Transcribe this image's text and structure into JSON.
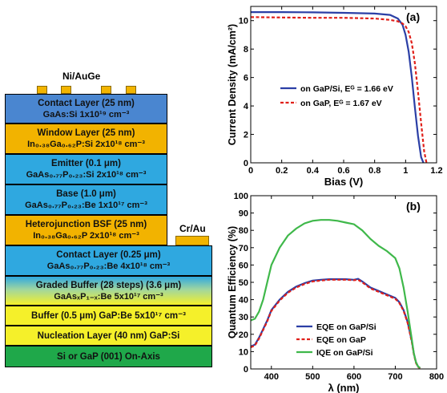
{
  "device": {
    "top_metal_label": "Ni/AuGe",
    "side_metal_label": "Cr/Au",
    "layers": [
      {
        "line1": "Contact Layer (25 nm)",
        "line2": "GaAs:Si 1x10¹⁹ cm⁻³",
        "color": "#4a86d0"
      },
      {
        "line1": "Window Layer (25 nm)",
        "line2": "In₀.₃₈Ga₀.₆₂P:Si 2x10¹⁸ cm⁻³",
        "color": "#f2b300"
      },
      {
        "line1": "Emitter (0.1 μm)",
        "line2": "GaAs₀.₇₇P₀.₂₃:Si 2x10¹⁸ cm⁻³",
        "color": "#2fa8e0"
      },
      {
        "line1": "Base (1.0 μm)",
        "line2": "GaAs₀.₇₇P₀.₂₃:Be 1x10¹⁷ cm⁻³",
        "color": "#2fa8e0"
      },
      {
        "line1": "Heterojunction BSF (25 nm)",
        "line2": "In₀.₃₈Ga₀.₆₂P 2x10¹⁸ cm⁻³",
        "color": "#f2b300"
      },
      {
        "line1": "Contact Layer (0.25 μm)",
        "line2": "GaAs₀.₇₇P₀.₂₃:Be 4x10¹⁸ cm⁻³",
        "color": "#2fa8e0"
      },
      {
        "line1": "Graded Buffer (28 steps) (3.6 μm)",
        "line2": "GaAsₓP₁₋ₓ:Be 5x10¹⁷ cm⁻³",
        "color": "gradient"
      },
      {
        "line1": "Buffer (0.5 μm) GaP:Be 5x10¹⁷ cm⁻³",
        "line2": "",
        "color": "#f5f02a"
      },
      {
        "line1": "Nucleation Layer (40 nm) GaP:Si",
        "line2": "",
        "color": "#f5f02a"
      },
      {
        "line1": "Si or GaP (001) On-Axis",
        "line2": "",
        "color": "#1fa84a"
      }
    ]
  },
  "chart_data": [
    {
      "type": "line",
      "panel_label": "(a)",
      "xlabel": "Bias (V)",
      "ylabel": "Current Density (mA/cm²)",
      "xlim": [
        0,
        1.2
      ],
      "ylim": [
        0,
        11
      ],
      "xticks": [
        0,
        0.2,
        0.4,
        0.6,
        0.8,
        1,
        1.2
      ],
      "xtick_labels": [
        "0",
        "0.2",
        "0.4",
        "0.6",
        "0.8",
        "1",
        "1.2"
      ],
      "yticks": [
        0,
        2,
        4,
        6,
        8,
        10
      ],
      "ytick_labels": [
        "0",
        "2",
        "4",
        "6",
        "8",
        "10"
      ],
      "grid": false,
      "legend_position": "center",
      "series": [
        {
          "name": "on GaP/Si, Eᴳ = 1.66 eV",
          "color": "#2b3fa6",
          "style": "solid",
          "x": [
            0,
            0.2,
            0.4,
            0.6,
            0.8,
            0.9,
            0.95,
            0.98,
            1.0,
            1.02,
            1.04,
            1.06,
            1.08,
            1.1,
            1.115
          ],
          "y": [
            10.6,
            10.6,
            10.58,
            10.55,
            10.5,
            10.4,
            10.15,
            9.7,
            9.0,
            7.8,
            6.0,
            3.9,
            1.9,
            0.4,
            0
          ]
        },
        {
          "name": "on GaP, Eᴳ = 1.67 eV",
          "color": "#e0201a",
          "style": "dashed",
          "x": [
            0,
            0.2,
            0.4,
            0.6,
            0.8,
            0.9,
            0.95,
            0.98,
            1.0,
            1.02,
            1.04,
            1.06,
            1.08,
            1.1,
            1.12,
            1.135
          ],
          "y": [
            10.25,
            10.22,
            10.2,
            10.2,
            10.15,
            10.05,
            9.95,
            9.8,
            9.6,
            9.2,
            8.4,
            7.0,
            5.0,
            2.8,
            0.8,
            0
          ]
        }
      ]
    },
    {
      "type": "line",
      "panel_label": "(b)",
      "xlabel": "λ (nm)",
      "ylabel": "Quantum Efficiency (%)",
      "xlim": [
        350,
        800
      ],
      "ylim": [
        0,
        100
      ],
      "xticks": [
        400,
        500,
        600,
        700,
        800
      ],
      "xtick_labels": [
        "400",
        "500",
        "600",
        "700",
        "800"
      ],
      "yticks": [
        0,
        10,
        20,
        30,
        40,
        50,
        60,
        70,
        80,
        90,
        100
      ],
      "ytick_labels": [
        "0",
        "10",
        "20",
        "30",
        "40",
        "50",
        "60",
        "70",
        "80",
        "90",
        "100"
      ],
      "grid": false,
      "legend_position": "bottom-left",
      "series": [
        {
          "name": "EQE on GaP/Si",
          "color": "#2b3fa6",
          "style": "solid",
          "x": [
            350,
            360,
            370,
            380,
            390,
            400,
            420,
            440,
            460,
            480,
            500,
            520,
            540,
            560,
            580,
            600,
            610,
            620,
            640,
            660,
            680,
            700,
            710,
            720,
            730,
            740,
            745,
            750,
            755,
            760
          ],
          "y": [
            13,
            14,
            18,
            23,
            28,
            34,
            40,
            44.5,
            47.5,
            49.5,
            51,
            51.5,
            51.8,
            51.8,
            51.8,
            51.5,
            52,
            50.5,
            47,
            45,
            43,
            41,
            38.5,
            34,
            27,
            16,
            9,
            4,
            1.5,
            0.5
          ]
        },
        {
          "name": "EQE on GaP",
          "color": "#e0201a",
          "style": "dashed",
          "x": [
            350,
            360,
            370,
            380,
            390,
            400,
            420,
            440,
            460,
            480,
            500,
            520,
            540,
            560,
            580,
            600,
            610,
            620,
            640,
            660,
            680,
            700,
            710,
            720,
            730,
            740,
            745,
            750,
            755,
            760
          ],
          "y": [
            12.5,
            13.5,
            17.5,
            22.5,
            27.5,
            33.5,
            39.5,
            44,
            47,
            49,
            50.5,
            51,
            51.5,
            51.5,
            51.5,
            51.2,
            51.5,
            50,
            46.5,
            44.5,
            42.5,
            40.5,
            38,
            33.5,
            26.5,
            15.5,
            8.5,
            3.5,
            1.2,
            0.3
          ]
        },
        {
          "name": "IQE on GaP/Si",
          "color": "#3fb84a",
          "style": "solid",
          "x": [
            350,
            360,
            370,
            380,
            390,
            400,
            420,
            440,
            460,
            480,
            500,
            520,
            540,
            560,
            580,
            600,
            620,
            640,
            660,
            680,
            700,
            710,
            720,
            730,
            740,
            745,
            750,
            755,
            760
          ],
          "y": [
            28,
            29,
            33,
            40,
            50,
            60,
            70,
            77,
            81,
            84,
            85.5,
            86,
            86,
            85.5,
            84.5,
            83.5,
            80,
            75,
            71,
            68,
            64,
            58,
            47,
            33,
            17,
            9,
            4,
            1.5,
            0.5
          ]
        }
      ]
    }
  ]
}
